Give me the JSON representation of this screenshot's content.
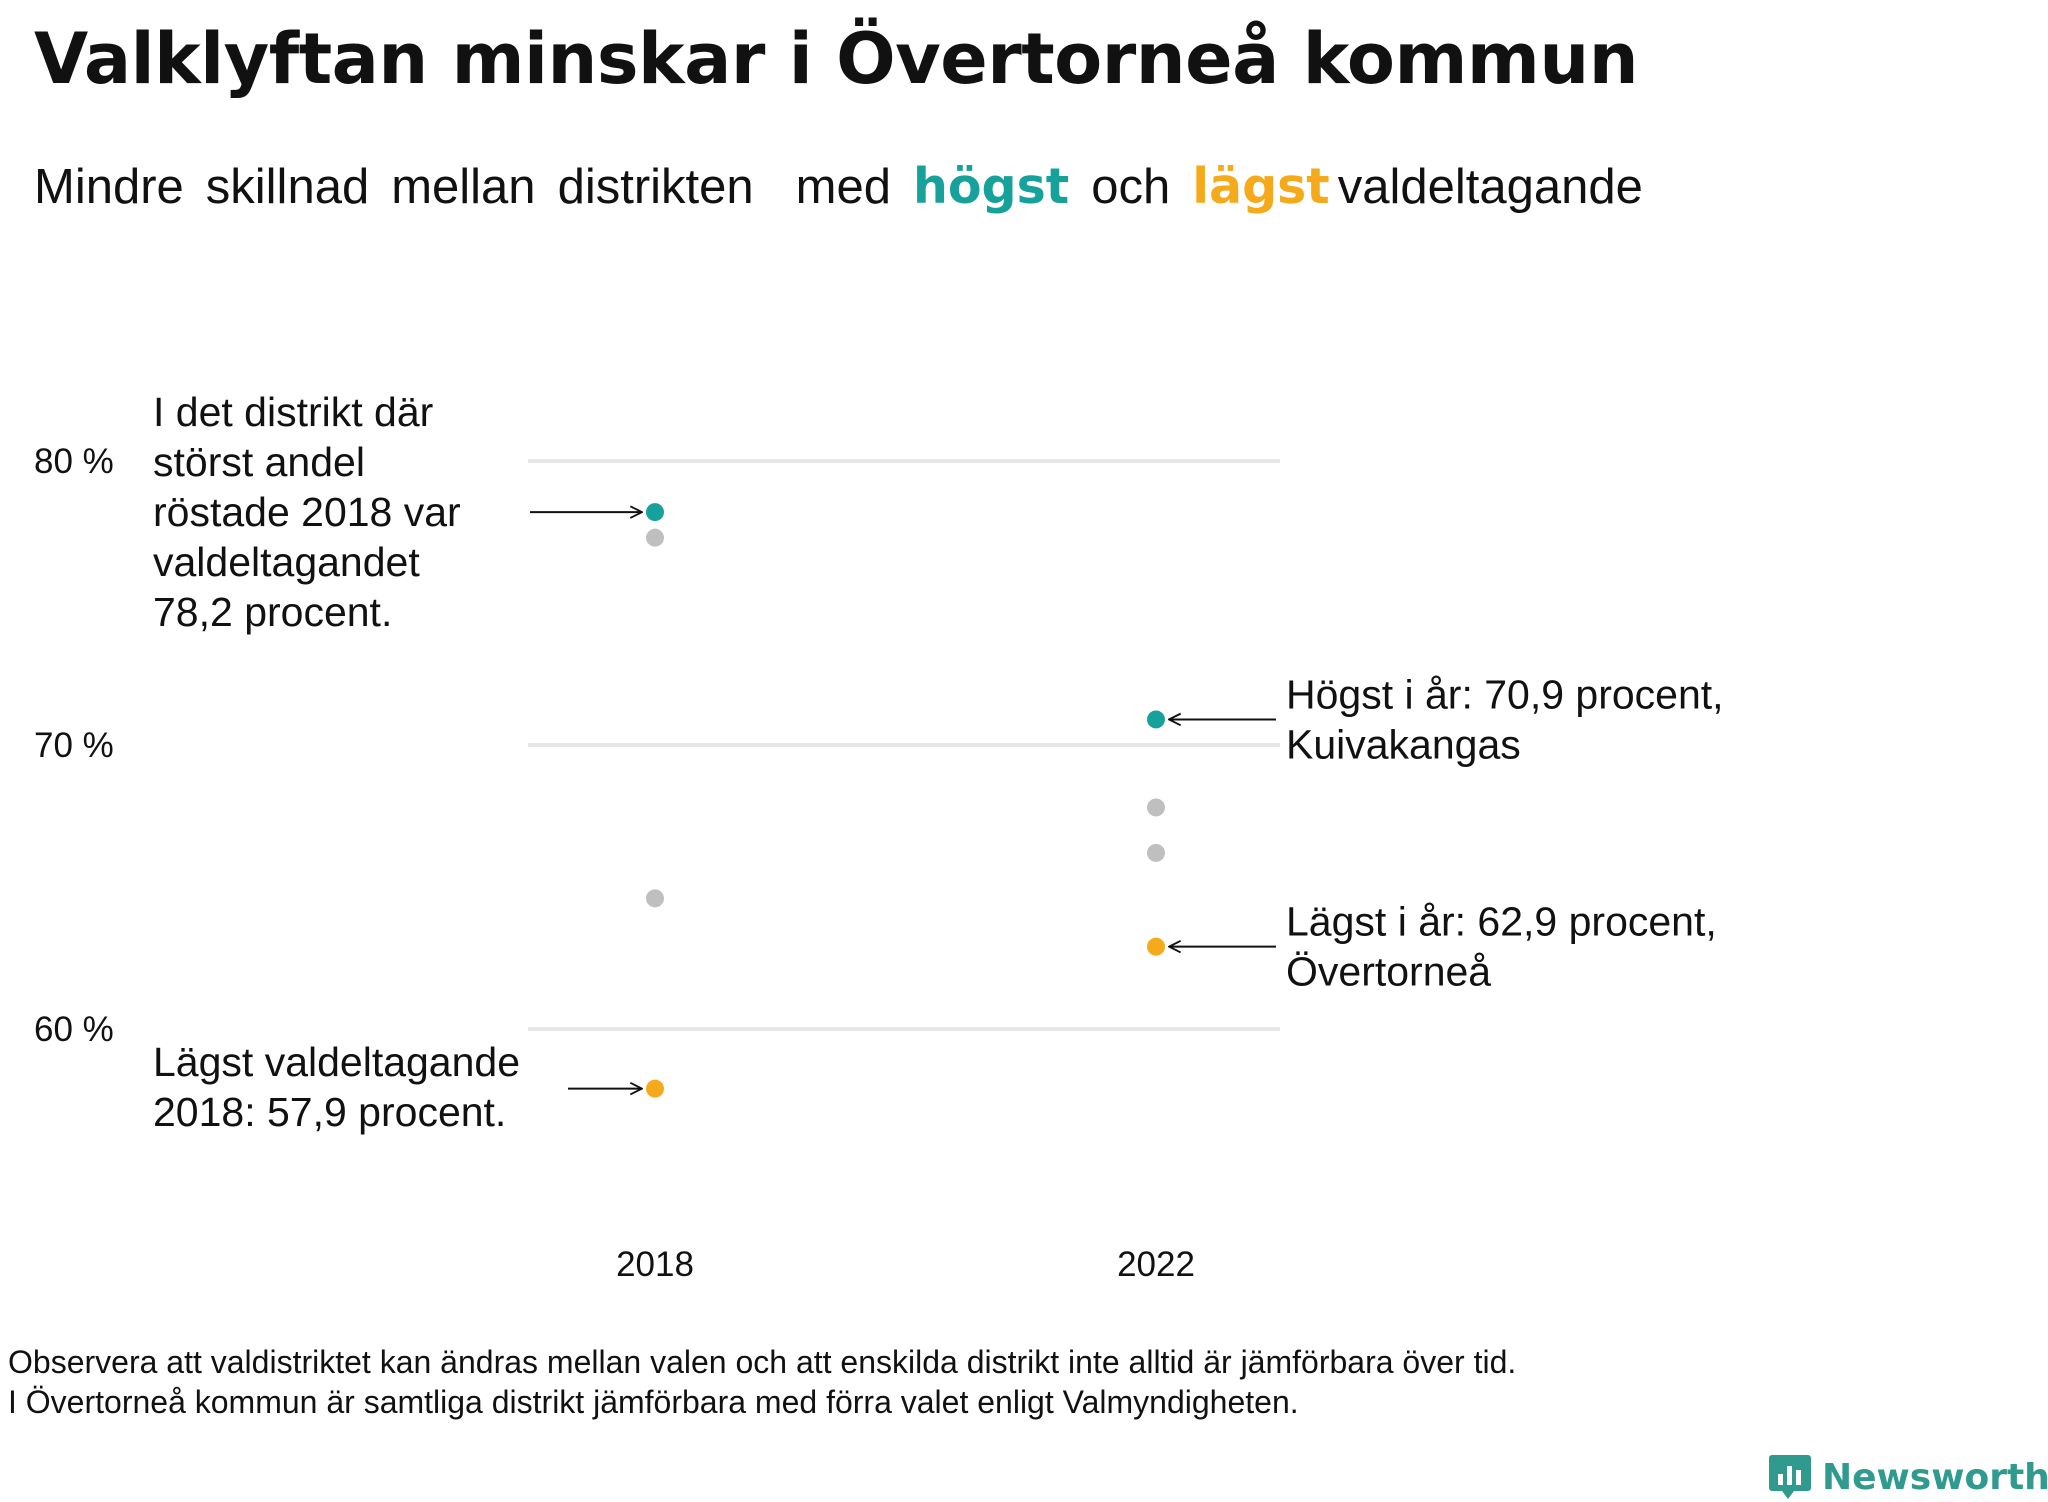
{
  "title": "Valklyftan minskar i Övertorneå kommun",
  "subtitle": {
    "words": [
      "Mindre",
      "skillnad",
      "mellan",
      "distrikten",
      "med"
    ],
    "highlight_high": "högst",
    "connector": "och",
    "highlight_low": "lägst",
    "tail": "valdeltagande"
  },
  "colors": {
    "high": "#17a19b",
    "low": "#f5aa1c",
    "other": "#bfbfbf",
    "grid": "#e6e6e6",
    "brand": "#2f9a8d"
  },
  "chart_data": {
    "type": "scatter",
    "title": "Valklyftan minskar i Övertorneå kommun",
    "x_categories": [
      "2018",
      "2022"
    ],
    "y_ticks": [
      {
        "value": 60,
        "label": "60 %"
      },
      {
        "value": 70,
        "label": "70 %"
      },
      {
        "value": 80,
        "label": "80 %"
      }
    ],
    "ylim": [
      55,
      85
    ],
    "points": [
      {
        "x": "2018",
        "y": 78.2,
        "group": "high"
      },
      {
        "x": "2018",
        "y": 77.3,
        "group": "other"
      },
      {
        "x": "2018",
        "y": 64.6,
        "group": "other"
      },
      {
        "x": "2018",
        "y": 57.9,
        "group": "low"
      },
      {
        "x": "2022",
        "y": 70.9,
        "group": "high"
      },
      {
        "x": "2022",
        "y": 67.8,
        "group": "other"
      },
      {
        "x": "2022",
        "y": 66.2,
        "group": "other"
      },
      {
        "x": "2022",
        "y": 62.9,
        "group": "low"
      }
    ],
    "annotations": [
      {
        "target": 0,
        "side": "left",
        "lines": [
          "I det distrikt där",
          "störst andel",
          "röstade 2018 var",
          "valdeltagandet",
          "78,2 procent."
        ]
      },
      {
        "target": 3,
        "side": "left",
        "lines": [
          "Lägst valdeltagande",
          "2018: 57,9 procent."
        ]
      },
      {
        "target": 4,
        "side": "right",
        "lines": [
          "Högst i år: 70,9 procent,",
          "Kuivakangas"
        ]
      },
      {
        "target": 7,
        "side": "right",
        "lines": [
          "Lägst i år: 62,9 procent,",
          "Övertorneå"
        ]
      }
    ]
  },
  "notes": [
    "Observera att valdistriktet kan ändras mellan valen och att enskilda distrikt inte alltid är jämförbara över tid.",
    "I Övertorneå kommun är samtliga distrikt jämförbara med förra valet enligt Valmyndigheten."
  ],
  "brand": {
    "name": "Newsworthy"
  }
}
